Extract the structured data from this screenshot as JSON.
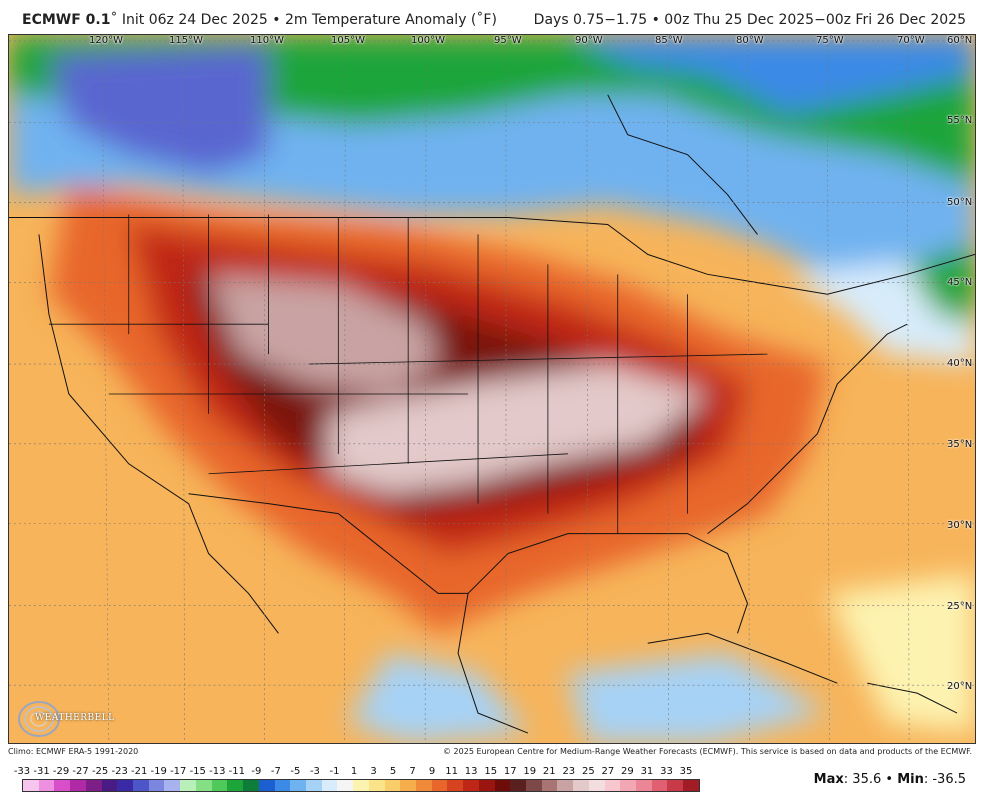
{
  "header": {
    "brand": "ECMWF 0.1",
    "init": "˚ Init 06z 24 Dec 2025 • 2m Temperature Anomaly (˚F)",
    "valid": "Days 0.75−1.75 • 00z Thu 25 Dec 2025−00z Fri 26 Dec 2025"
  },
  "map": {
    "lon_labels": [
      "120°W",
      "115°W",
      "110°W",
      "105°W",
      "100°W",
      "95°W",
      "90°W",
      "85°W",
      "80°W",
      "75°W",
      "70°W"
    ],
    "lat_labels": [
      "60°N",
      "55°N",
      "50°N",
      "45°N",
      "40°N",
      "35°N",
      "30°N",
      "25°N",
      "20°N"
    ]
  },
  "logo": {
    "name": "WEATHERBELL",
    "icon": "weatherbell-swirl-logo"
  },
  "footer": {
    "climo": "Climo: ECMWF ERA-5 1991-2020",
    "copyright": "© 2025 European Centre for Medium-Range Weather Forecasts (ECMWF). This service is based on data and products of the ECMWF."
  },
  "legend": {
    "ticks": [
      "-33",
      "-31",
      "-29",
      "-27",
      "-25",
      "-23",
      "-21",
      "-19",
      "-17",
      "-15",
      "-13",
      "-11",
      "-9",
      "-7",
      "-5",
      "-3",
      "-1",
      "1",
      "3",
      "5",
      "7",
      "9",
      "11",
      "13",
      "15",
      "17",
      "19",
      "21",
      "23",
      "25",
      "27",
      "29",
      "31",
      "33",
      "35"
    ],
    "colors": [
      "#f7c6ee",
      "#ee8fe0",
      "#d94fc9",
      "#b02aa8",
      "#7d1f86",
      "#4a1a85",
      "#3a2aa5",
      "#4e55c9",
      "#7b86df",
      "#a8b2ee",
      "#b9f0b9",
      "#85e085",
      "#4fca5a",
      "#1ea53a",
      "#0f7d3a",
      "#1c5fd0",
      "#3a8ae6",
      "#6fb2f0",
      "#a6d2f6",
      "#d8ecfb",
      "#f5f5f5",
      "#fdf3b0",
      "#fbe38a",
      "#f9cd6a",
      "#f6ae4c",
      "#f08a38",
      "#e8662a",
      "#d8431f",
      "#c02618",
      "#9a1410",
      "#6e0c0a",
      "#5a1f1f",
      "#7d4848",
      "#a87474",
      "#c9a3a3",
      "#e3c9c9",
      "#f2dede",
      "#f8c6cf",
      "#f3a6b4",
      "#ec8596",
      "#e06072",
      "#c83a48",
      "#a21c26"
    ]
  },
  "stats": {
    "max_label": "Max",
    "max_value": "35.6",
    "sep": " • ",
    "min_label": "Min",
    "min_value": "-36.5"
  }
}
